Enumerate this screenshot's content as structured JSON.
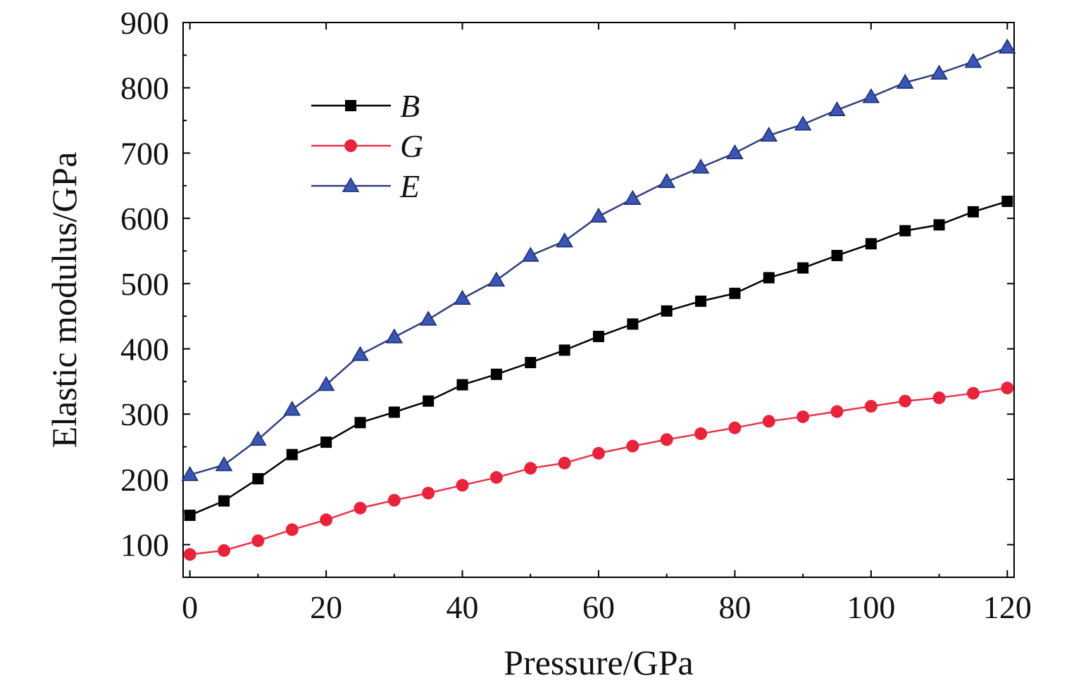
{
  "chart_data": {
    "type": "line",
    "xlabel": "Pressure/GPa",
    "ylabel": "Elastic modulus/GPa",
    "xlim": [
      -1,
      121
    ],
    "ylim": [
      50,
      900
    ],
    "xticks": [
      0,
      20,
      40,
      60,
      80,
      100,
      120
    ],
    "yticks": [
      100,
      200,
      300,
      400,
      500,
      600,
      700,
      800,
      900
    ],
    "grid": false,
    "legend_position": "top-left",
    "x": [
      0,
      5,
      10,
      15,
      20,
      25,
      30,
      35,
      40,
      45,
      50,
      55,
      60,
      65,
      70,
      75,
      80,
      85,
      90,
      95,
      100,
      105,
      110,
      115,
      120
    ],
    "series": [
      {
        "name": "B",
        "marker": "square",
        "color": "#000000",
        "marker_color": "#000000",
        "values": [
          145,
          167,
          201,
          238,
          257,
          287,
          303,
          320,
          345,
          361,
          379,
          398,
          419,
          438,
          458,
          473,
          485,
          509,
          524,
          543,
          561,
          581,
          590,
          610,
          626
        ]
      },
      {
        "name": "G",
        "marker": "circle",
        "color": "#e8324a",
        "marker_color": "#e8243c",
        "values": [
          85,
          91,
          106,
          123,
          138,
          156,
          168,
          179,
          191,
          203,
          217,
          225,
          240,
          251,
          261,
          270,
          279,
          289,
          296,
          304,
          312,
          320,
          325,
          332,
          340
        ]
      },
      {
        "name": "E",
        "marker": "triangle",
        "color": "#2e3e7e",
        "marker_color": "#3a56b4",
        "values": [
          207,
          222,
          261,
          307,
          345,
          391,
          418,
          445,
          477,
          505,
          543,
          565,
          603,
          630,
          656,
          678,
          700,
          727,
          744,
          766,
          786,
          808,
          822,
          840,
          862
        ]
      }
    ]
  }
}
